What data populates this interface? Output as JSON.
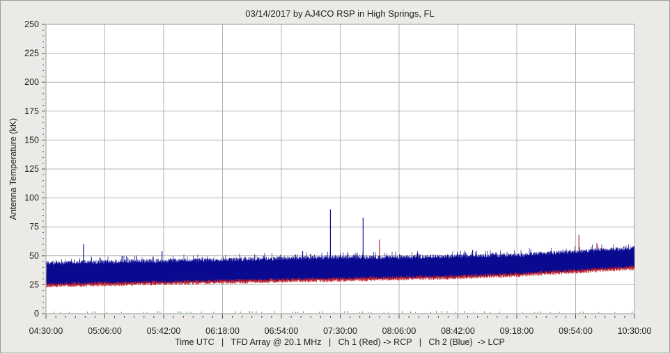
{
  "chart_data": {
    "type": "line",
    "title": "03/14/2017  by  AJ4CO RSP  in  High Springs, FL",
    "ylabel": "Antenna Temperature (kK)",
    "xlabel": "Time UTC   |   TFD Array @ 20.1 MHz   |   Ch 1 (Red) -> RCP   |   Ch 2 (Blue)  -> LCP",
    "ylim": [
      0,
      250
    ],
    "yticks": [
      0,
      25,
      50,
      75,
      100,
      125,
      150,
      175,
      200,
      225,
      250
    ],
    "x_tick_labels": [
      "04:30:00",
      "05:06:00",
      "05:42:00",
      "06:18:00",
      "06:54:00",
      "07:30:00",
      "08:06:00",
      "08:42:00",
      "09:18:00",
      "09:54:00",
      "10:30:00"
    ],
    "grid": true,
    "colors": {
      "red": "#c0202a",
      "blue": "#0a0a90",
      "green": "#2a8a2a",
      "grid": "#b3b3b3",
      "background": "#ffffff"
    },
    "series": [
      {
        "name": "Ch 1 (Red) -> RCP",
        "color": "#c0202a",
        "x": [
          "04:30:00",
          "05:06:00",
          "05:42:00",
          "06:18:00",
          "06:54:00",
          "07:30:00",
          "08:06:00",
          "08:42:00",
          "09:18:00",
          "09:54:00",
          "10:30:00"
        ],
        "low": [
          25,
          26,
          27,
          28,
          29,
          30,
          31,
          32,
          34,
          37,
          40
        ],
        "high": [
          33,
          34,
          35,
          36,
          37,
          38,
          39,
          40,
          42,
          45,
          48
        ],
        "spikes": [
          {
            "x": "07:54:00",
            "y": 64
          },
          {
            "x": "09:56:00",
            "y": 68
          },
          {
            "x": "10:07:00",
            "y": 61
          }
        ]
      },
      {
        "name": "Ch 2 (Blue) -> LCP",
        "color": "#0a0a90",
        "x": [
          "04:30:00",
          "05:06:00",
          "05:42:00",
          "06:18:00",
          "06:54:00",
          "07:30:00",
          "08:06:00",
          "08:42:00",
          "09:18:00",
          "09:54:00",
          "10:30:00"
        ],
        "low": [
          27,
          28,
          29,
          30,
          31,
          32,
          33,
          34,
          36,
          39,
          42
        ],
        "high": [
          42,
          43,
          44,
          45,
          46,
          47,
          47,
          48,
          49,
          52,
          55
        ],
        "spikes": [
          {
            "x": "04:53:00",
            "y": 60
          },
          {
            "x": "05:41:00",
            "y": 54
          },
          {
            "x": "07:24:00",
            "y": 90
          },
          {
            "x": "07:44:00",
            "y": 83
          },
          {
            "x": "07:07:00",
            "y": 54
          },
          {
            "x": "08:51:00",
            "y": 55
          }
        ]
      }
    ]
  }
}
